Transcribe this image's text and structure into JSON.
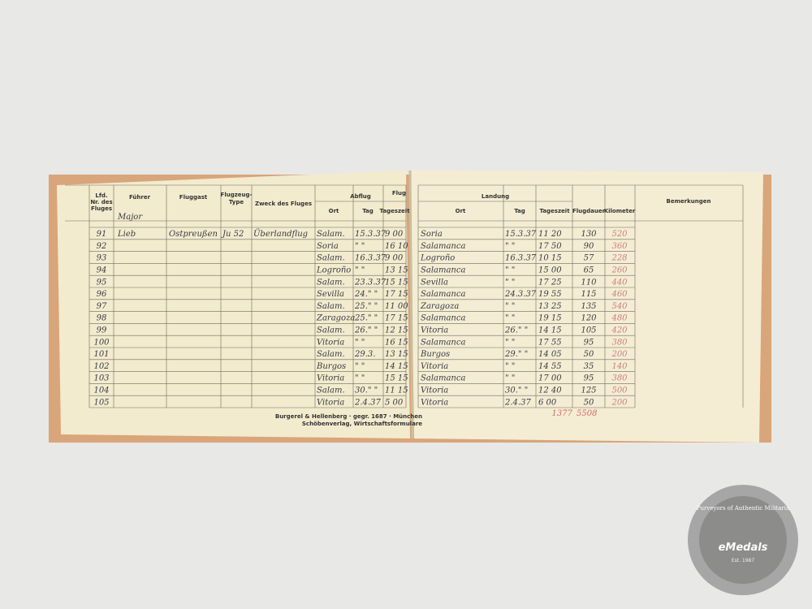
{
  "left_page": {
    "headers": {
      "nr": [
        "Lfd.",
        "Nr. des",
        "Fluges"
      ],
      "fuehrer": "Führer",
      "fluggast": "Fluggast",
      "type": [
        "Flugzeug-",
        "Type"
      ],
      "zweck": "Zweck des Fluges",
      "abflug": "Abflug",
      "ort": "Ort",
      "tag": "Tag",
      "zeit": "Tageszeit",
      "flug_partial": "Flug"
    },
    "handwritten_header": "Major",
    "footer": [
      "Burgerel & Hellenberg · gegr. 1687 · München",
      "Schöbenverlag, Wirtschaftsformulare"
    ]
  },
  "right_page": {
    "headers": {
      "landung": "Landung",
      "ort": "Ort",
      "tag": "Tag",
      "zeit": "Tageszeit",
      "dauer": "Flugdauer",
      "km": "Kilometer",
      "bemerkungen": "Bemerkungen"
    },
    "totals": [
      "1377",
      "5508"
    ]
  },
  "rows": [
    [
      91,
      "Lieb",
      "Ostpreußen",
      "Ju 52",
      "Überlandflug",
      "Salam.",
      "15.3.37",
      "9 00",
      "Soria",
      "15.3.37",
      "11 20",
      130,
      520
    ],
    [
      92,
      null,
      null,
      null,
      null,
      "Soria",
      "\" \"",
      "16 10",
      "Salamanca",
      "\" \"",
      "17 50",
      90,
      360
    ],
    [
      93,
      null,
      null,
      null,
      null,
      "Salam.",
      "16.3.37",
      "9 00",
      "Logroño",
      "16.3.37",
      "10 15",
      57,
      228
    ],
    [
      94,
      null,
      null,
      null,
      null,
      "Logroño",
      "\" \"",
      "13 15",
      "Salamanca",
      "\" \"",
      "15 00",
      65,
      260
    ],
    [
      95,
      null,
      null,
      null,
      null,
      "Salam.",
      "23.3.37",
      "15 15",
      "Sevilla",
      "\" \"",
      "17 25",
      110,
      440
    ],
    [
      96,
      null,
      null,
      null,
      null,
      "Sevilla",
      "24.\" \"",
      "17 15",
      "Salamanca",
      "24.3.37",
      "19 55",
      115,
      460
    ],
    [
      97,
      null,
      null,
      null,
      null,
      "Salam.",
      "25.\" \"",
      "11 00",
      "Zaragoza",
      "\" \"",
      "13 25",
      135,
      540
    ],
    [
      98,
      null,
      null,
      null,
      null,
      "Zaragoza",
      "25.\" \"",
      "17 15",
      "Salamanca",
      "\" \"",
      "19 15",
      120,
      480
    ],
    [
      99,
      null,
      null,
      null,
      null,
      "Salam.",
      "26.\" \"",
      "12 15",
      "Vitoria",
      "26.\" \"",
      "14 15",
      105,
      420
    ],
    [
      100,
      null,
      null,
      null,
      null,
      "Vitoria",
      "\" \"",
      "16 15",
      "Salamanca",
      "\" \"",
      "17 55",
      95,
      380
    ],
    [
      101,
      null,
      null,
      null,
      null,
      "Salam.",
      "29.3.",
      "13 15",
      "Burgos",
      "29.\" \"",
      "14 05",
      50,
      200
    ],
    [
      102,
      null,
      null,
      null,
      null,
      "Burgos",
      "\" \"",
      "14 15",
      "Vitoria",
      "\" \"",
      "14 55",
      35,
      140
    ],
    [
      103,
      null,
      null,
      null,
      null,
      "Vitoria",
      "\" \"",
      "15 15",
      "Salamanca",
      "\" \"",
      "17 00",
      95,
      380
    ],
    [
      104,
      null,
      null,
      null,
      null,
      "Salam.",
      "30.\" \"",
      "11 15",
      "Vitoria",
      "30.\" \"",
      "12 40",
      125,
      500
    ],
    [
      105,
      null,
      null,
      null,
      null,
      "Vitoria",
      "2.4.37",
      "5 00",
      "Vitoria",
      "2.4.37",
      "6 00",
      50,
      200
    ]
  ],
  "watermark": {
    "motto": "Purveyors of Authentic Militaria",
    "brand": "eMedals",
    "est": "Est. 1987"
  }
}
